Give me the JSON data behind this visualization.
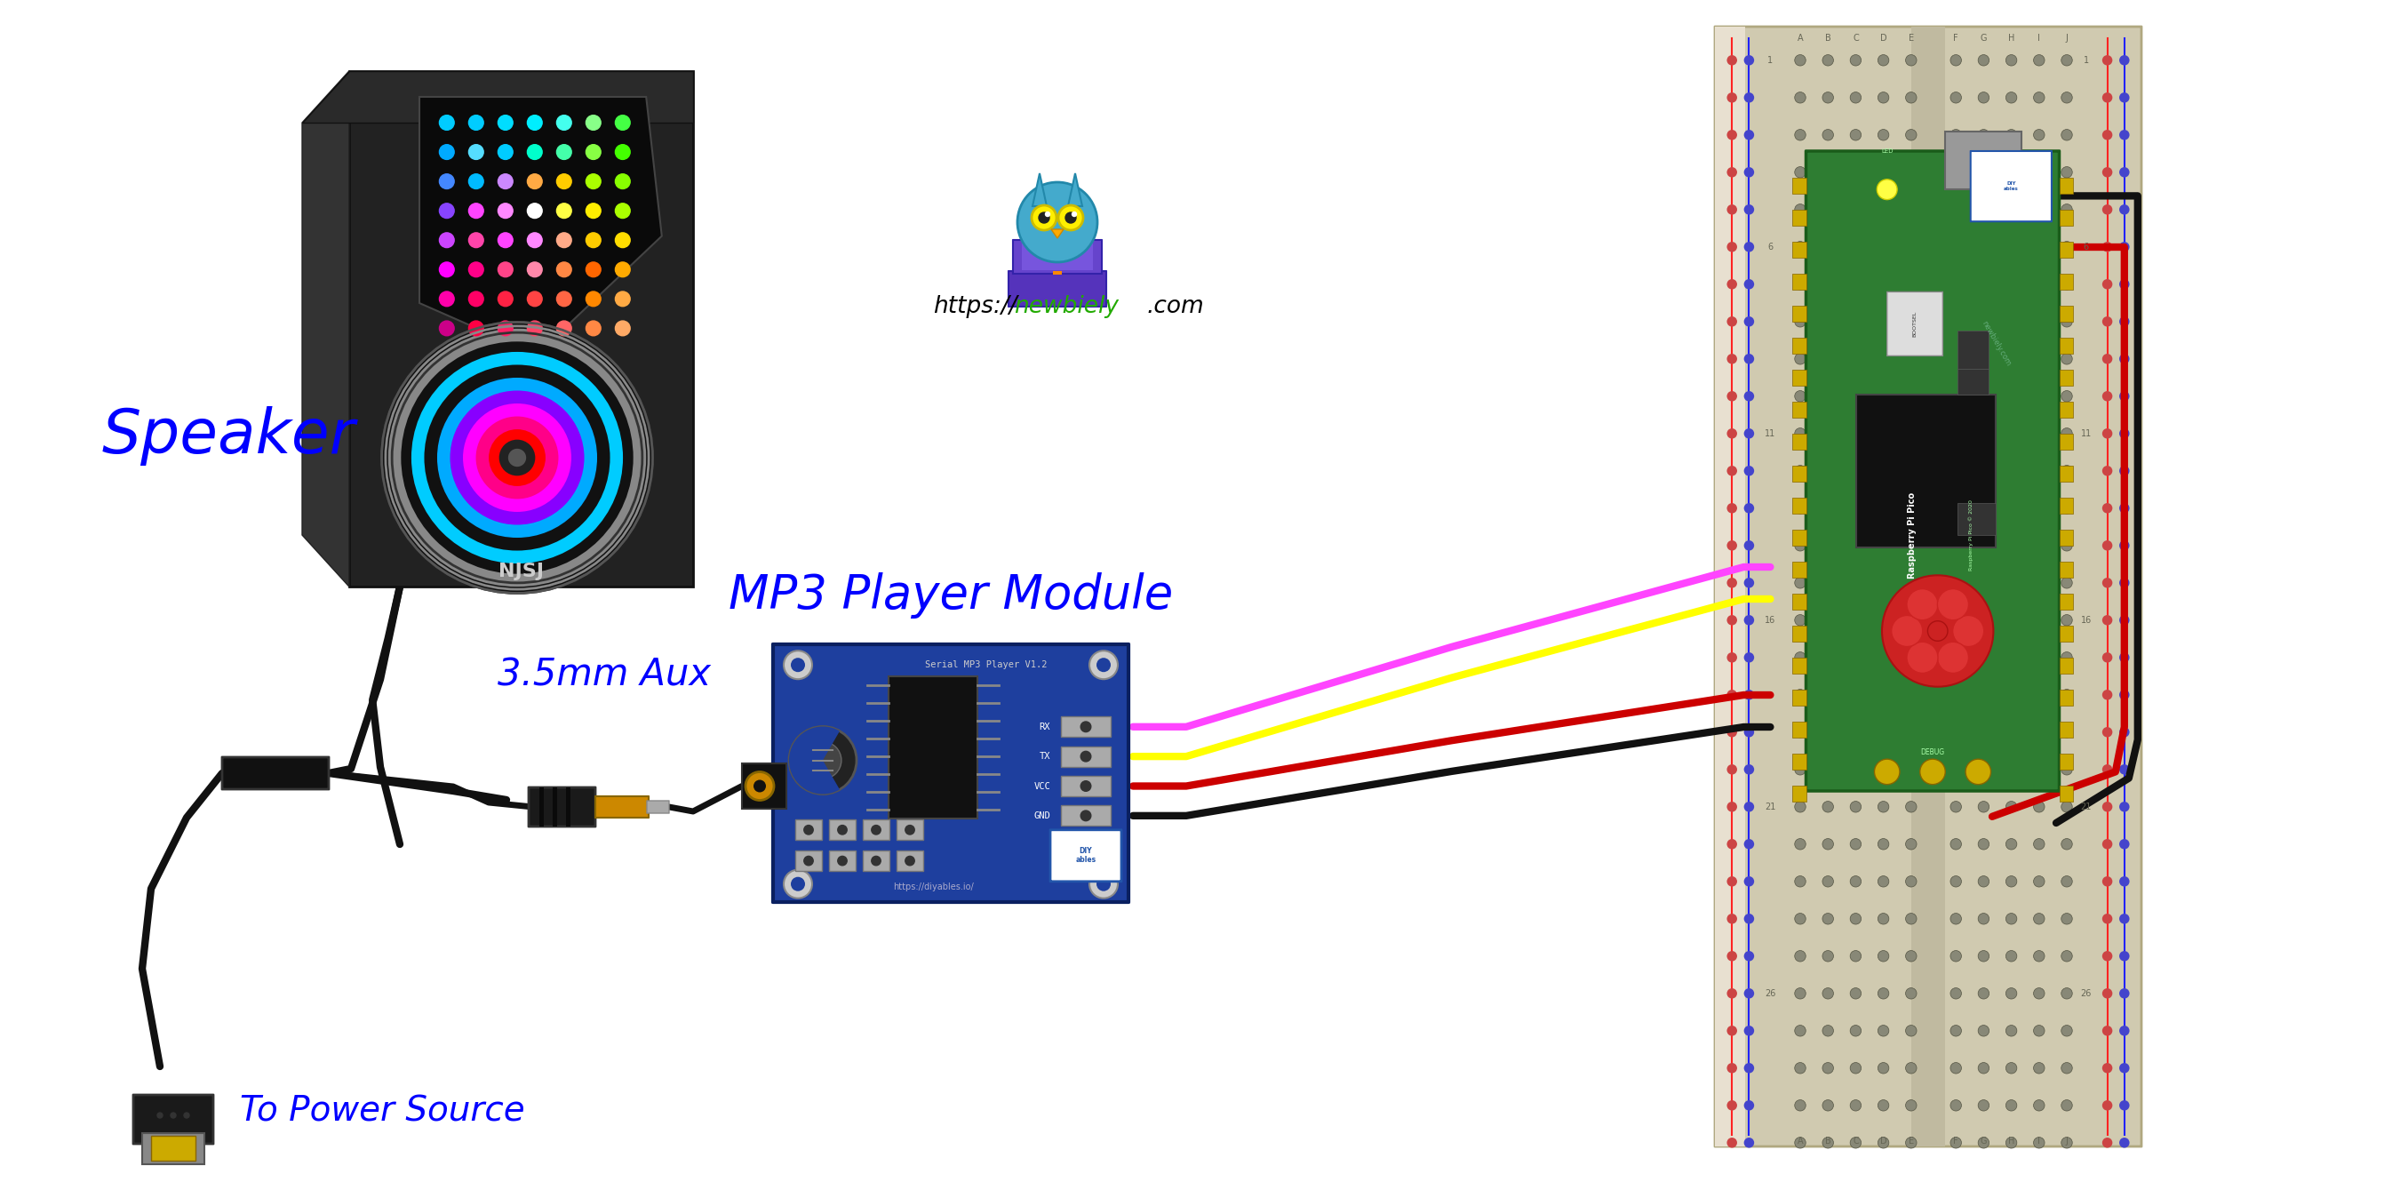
{
  "bg_color": "#ffffff",
  "speaker_label": "Speaker",
  "aux_label": "3.5mm Aux",
  "power_label": "To Power Source",
  "mp3_label": "MP3 Player Module",
  "speaker_label_color": "#0000ff",
  "mp3_label_color": "#0000ff",
  "aux_label_color": "#0000ff",
  "power_label_color": "#0000ff",
  "wire_magenta": "#ff44ff",
  "wire_yellow": "#ffff00",
  "wire_red": "#cc0000",
  "wire_black": "#111111",
  "pico_green": "#2e7d32",
  "mp3_blue": "#1a3a8c",
  "bb_color": "#d4cdb5",
  "bb_rail_red": "#ff4444",
  "bb_rail_blue": "#4444ff",
  "speaker_body": "#1a1a1a",
  "website_black": "#000000",
  "website_green": "#22aa00",
  "owl_blue": "#44aacc",
  "owl_purple": "#5533bb"
}
